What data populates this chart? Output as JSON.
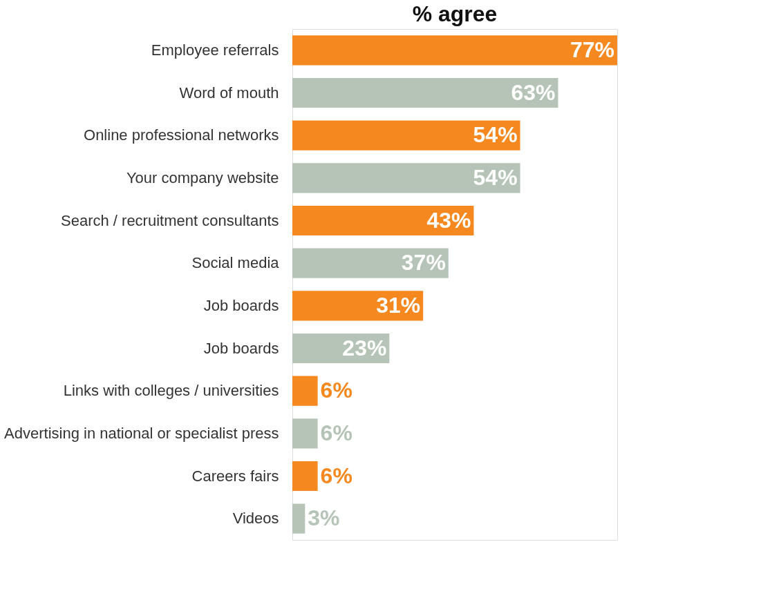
{
  "chart_data": {
    "type": "bar",
    "orientation": "horizontal",
    "title": "% agree",
    "categories": [
      "Employee referrals",
      "Word of mouth",
      "Online professional networks",
      "Your company website",
      "Search / recruitment consultants",
      "Social media",
      "Job boards",
      "Job boards",
      "Links with colleges / universities",
      "Advertising in national or specialist press",
      "Careers fairs",
      "Videos"
    ],
    "values": [
      77,
      63,
      54,
      54,
      43,
      37,
      31,
      23,
      6,
      6,
      6,
      3
    ],
    "colors": [
      "#f5891f",
      "#b5c4b7",
      "#f5891f",
      "#b5c4b7",
      "#f5891f",
      "#b5c4b7",
      "#f5891f",
      "#b5c4b7",
      "#f5891f",
      "#b5c4b7",
      "#f5891f",
      "#b5c4b7"
    ],
    "value_labels": [
      "77%",
      "63%",
      "54%",
      "54%",
      "43%",
      "37%",
      "31%",
      "23%",
      "6%",
      "6%",
      "6%",
      "3%"
    ],
    "grid": false
  }
}
